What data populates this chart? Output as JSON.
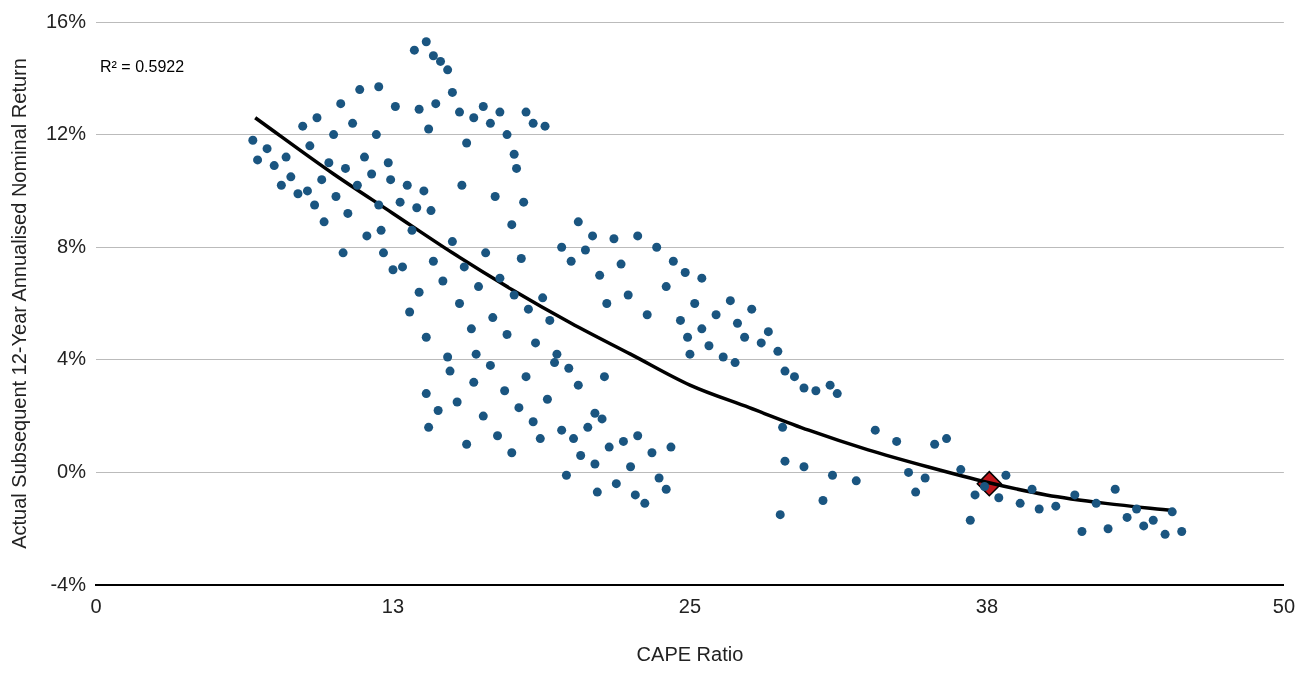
{
  "chart_data": {
    "type": "scatter",
    "xlabel": "CAPE Ratio",
    "ylabel": "Actual Subsequent 12-Year Annualised Nominal Return",
    "annotations": [
      "R² = 0.5922"
    ],
    "xlim": [
      0,
      50
    ],
    "xticks": [
      0,
      {
        "value": 12.5,
        "label": "13"
      },
      25,
      {
        "value": 37.5,
        "label": "38"
      },
      50
    ],
    "ylim": [
      -4,
      16
    ],
    "yticks": [
      {
        "value": -4,
        "label": "-4%"
      },
      {
        "value": 0,
        "label": "0%"
      },
      {
        "value": 4,
        "label": "4%"
      },
      {
        "value": 8,
        "label": "8%"
      },
      {
        "value": 12,
        "label": "12%"
      },
      {
        "value": 16,
        "label": "16%"
      }
    ],
    "grid": "y",
    "legend": false,
    "marker": "circle",
    "series": [
      {
        "color": "#1a5580",
        "x": [
          6.6,
          6.8,
          7.2,
          7.5,
          7.8,
          8.0,
          8.2,
          8.5,
          8.7,
          8.9,
          9.0,
          9.2,
          9.3,
          9.5,
          9.6,
          9.8,
          10.0,
          10.1,
          10.3,
          10.5,
          10.6,
          10.8,
          11.0,
          11.1,
          11.3,
          11.4,
          11.6,
          11.8,
          11.9,
          12.1,
          12.3,
          12.4,
          12.6,
          12.8,
          12.9,
          13.1,
          13.3,
          13.5,
          13.8,
          14.1,
          11.9,
          12.5,
          12.0,
          10.4,
          13.4,
          13.9,
          14.2,
          14.5,
          14.8,
          14.3,
          14.0,
          13.6,
          15.0,
          15.3,
          15.6,
          15.9,
          16.3,
          16.6,
          17.0,
          17.3,
          17.6,
          18.1,
          18.4,
          18.9,
          15.4,
          16.8,
          17.7,
          18.0,
          17.5,
          13.2,
          13.6,
          13.9,
          14.2,
          14.6,
          15.0,
          15.3,
          15.5,
          15.8,
          16.1,
          16.4,
          16.7,
          17.0,
          17.3,
          17.6,
          17.9,
          18.2,
          18.5,
          18.8,
          19.1,
          19.4,
          16.0,
          14.8,
          13.9,
          14.0,
          14.4,
          14.9,
          15.2,
          15.6,
          15.9,
          16.3,
          16.6,
          16.9,
          17.2,
          17.5,
          17.8,
          18.1,
          18.4,
          18.7,
          19.0,
          19.3,
          19.6,
          19.8,
          20.1,
          20.4,
          20.7,
          21.0,
          21.3,
          21.6,
          21.9,
          22.2,
          22.5,
          22.8,
          23.1,
          23.4,
          23.7,
          24.0,
          24.2,
          21.1,
          22.7,
          19.6,
          20.0,
          20.3,
          20.6,
          20.9,
          21.2,
          21.5,
          21.8,
          22.1,
          22.4,
          22.8,
          23.2,
          23.6,
          24.0,
          24.3,
          20.3,
          19.9,
          21.0,
          21.4,
          24.6,
          24.9,
          25.2,
          25.5,
          25.8,
          26.1,
          26.4,
          26.7,
          27.0,
          27.3,
          27.6,
          28.0,
          28.3,
          28.7,
          25.0,
          26.9,
          24.8,
          25.5,
          29.0,
          29.4,
          29.8,
          30.3,
          30.9,
          31.2,
          28.9,
          28.8,
          29.0,
          29.8,
          30.6,
          31.0,
          32.0,
          32.8,
          33.7,
          34.2,
          34.5,
          34.9,
          35.3,
          35.8,
          36.4,
          36.8,
          37.4,
          38.0,
          38.3,
          38.9,
          39.4,
          39.7,
          40.4,
          41.2,
          41.5,
          42.1,
          42.6,
          42.9,
          43.4,
          43.8,
          44.1,
          44.5,
          45.0,
          45.3,
          45.7,
          37.0
        ],
        "values": [
          11.8,
          11.1,
          11.5,
          10.9,
          10.2,
          11.2,
          10.5,
          9.9,
          12.3,
          10.0,
          11.6,
          9.5,
          12.6,
          10.4,
          8.9,
          11.0,
          12.0,
          9.8,
          13.1,
          10.8,
          9.2,
          12.4,
          10.2,
          13.6,
          11.2,
          8.4,
          10.6,
          12.0,
          9.5,
          7.8,
          11.0,
          10.4,
          13.0,
          9.6,
          7.3,
          10.2,
          8.6,
          9.4,
          10.0,
          9.3,
          13.7,
          7.2,
          8.6,
          7.8,
          15.0,
          15.3,
          14.8,
          14.6,
          14.3,
          13.1,
          12.2,
          12.9,
          13.5,
          12.8,
          11.7,
          12.6,
          13.0,
          12.4,
          12.8,
          12.0,
          11.3,
          12.8,
          12.4,
          12.3,
          10.2,
          9.8,
          10.8,
          9.6,
          8.8,
          5.7,
          6.4,
          4.8,
          7.5,
          6.8,
          8.2,
          6.0,
          7.3,
          5.1,
          6.6,
          7.8,
          5.5,
          6.9,
          4.9,
          6.3,
          7.6,
          5.8,
          4.6,
          6.2,
          5.4,
          4.2,
          4.2,
          4.1,
          2.8,
          1.6,
          2.2,
          3.6,
          2.5,
          1.0,
          3.2,
          2.0,
          3.8,
          1.3,
          2.9,
          0.7,
          2.3,
          3.4,
          1.8,
          1.2,
          2.6,
          3.9,
          1.5,
          -0.1,
          1.2,
          0.6,
          1.6,
          0.3,
          1.9,
          0.9,
          -0.4,
          1.1,
          0.2,
          1.3,
          -1.1,
          0.7,
          -0.2,
          -0.6,
          0.9,
          -0.7,
          -0.8,
          8.0,
          7.5,
          8.9,
          7.9,
          8.4,
          7.0,
          6.0,
          8.3,
          7.4,
          6.3,
          8.4,
          5.6,
          8.0,
          6.6,
          7.5,
          3.1,
          3.7,
          2.1,
          3.4,
          5.4,
          4.8,
          6.0,
          5.1,
          4.5,
          5.6,
          4.1,
          6.1,
          5.3,
          4.8,
          5.8,
          4.6,
          5.0,
          4.3,
          4.2,
          3.9,
          7.1,
          6.9,
          3.6,
          3.4,
          3.0,
          2.9,
          3.1,
          2.8,
          1.6,
          -1.5,
          0.4,
          0.2,
          -1.0,
          -0.1,
          -0.3,
          1.5,
          1.1,
          0.0,
          -0.7,
          -0.2,
          1.0,
          1.2,
          0.1,
          -1.7,
          -0.5,
          -0.9,
          -0.1,
          -1.1,
          -0.6,
          -1.3,
          -1.2,
          -0.8,
          -2.1,
          -1.1,
          -2.0,
          -0.6,
          -1.6,
          -1.3,
          -1.9,
          -1.7,
          -2.2,
          -1.4,
          -2.1,
          -0.8
        ]
      },
      {
        "type": "line",
        "color": "#000000",
        "marker": "none",
        "x": [
          6.7,
          10,
          12.5,
          15,
          17.5,
          20,
          22.5,
          25,
          27.5,
          30,
          32.5,
          35,
          37.5,
          40,
          42.5,
          45.3
        ],
        "values": [
          12.6,
          10.6,
          9.2,
          7.8,
          6.5,
          5.3,
          4.2,
          3.1,
          2.3,
          1.5,
          0.8,
          0.2,
          -0.35,
          -0.8,
          -1.1,
          -1.35
        ]
      },
      {
        "type": "scatter",
        "color": "#c0161b",
        "marker": "diamond",
        "x": [
          37.6
        ],
        "values": [
          -0.4
        ]
      }
    ]
  }
}
